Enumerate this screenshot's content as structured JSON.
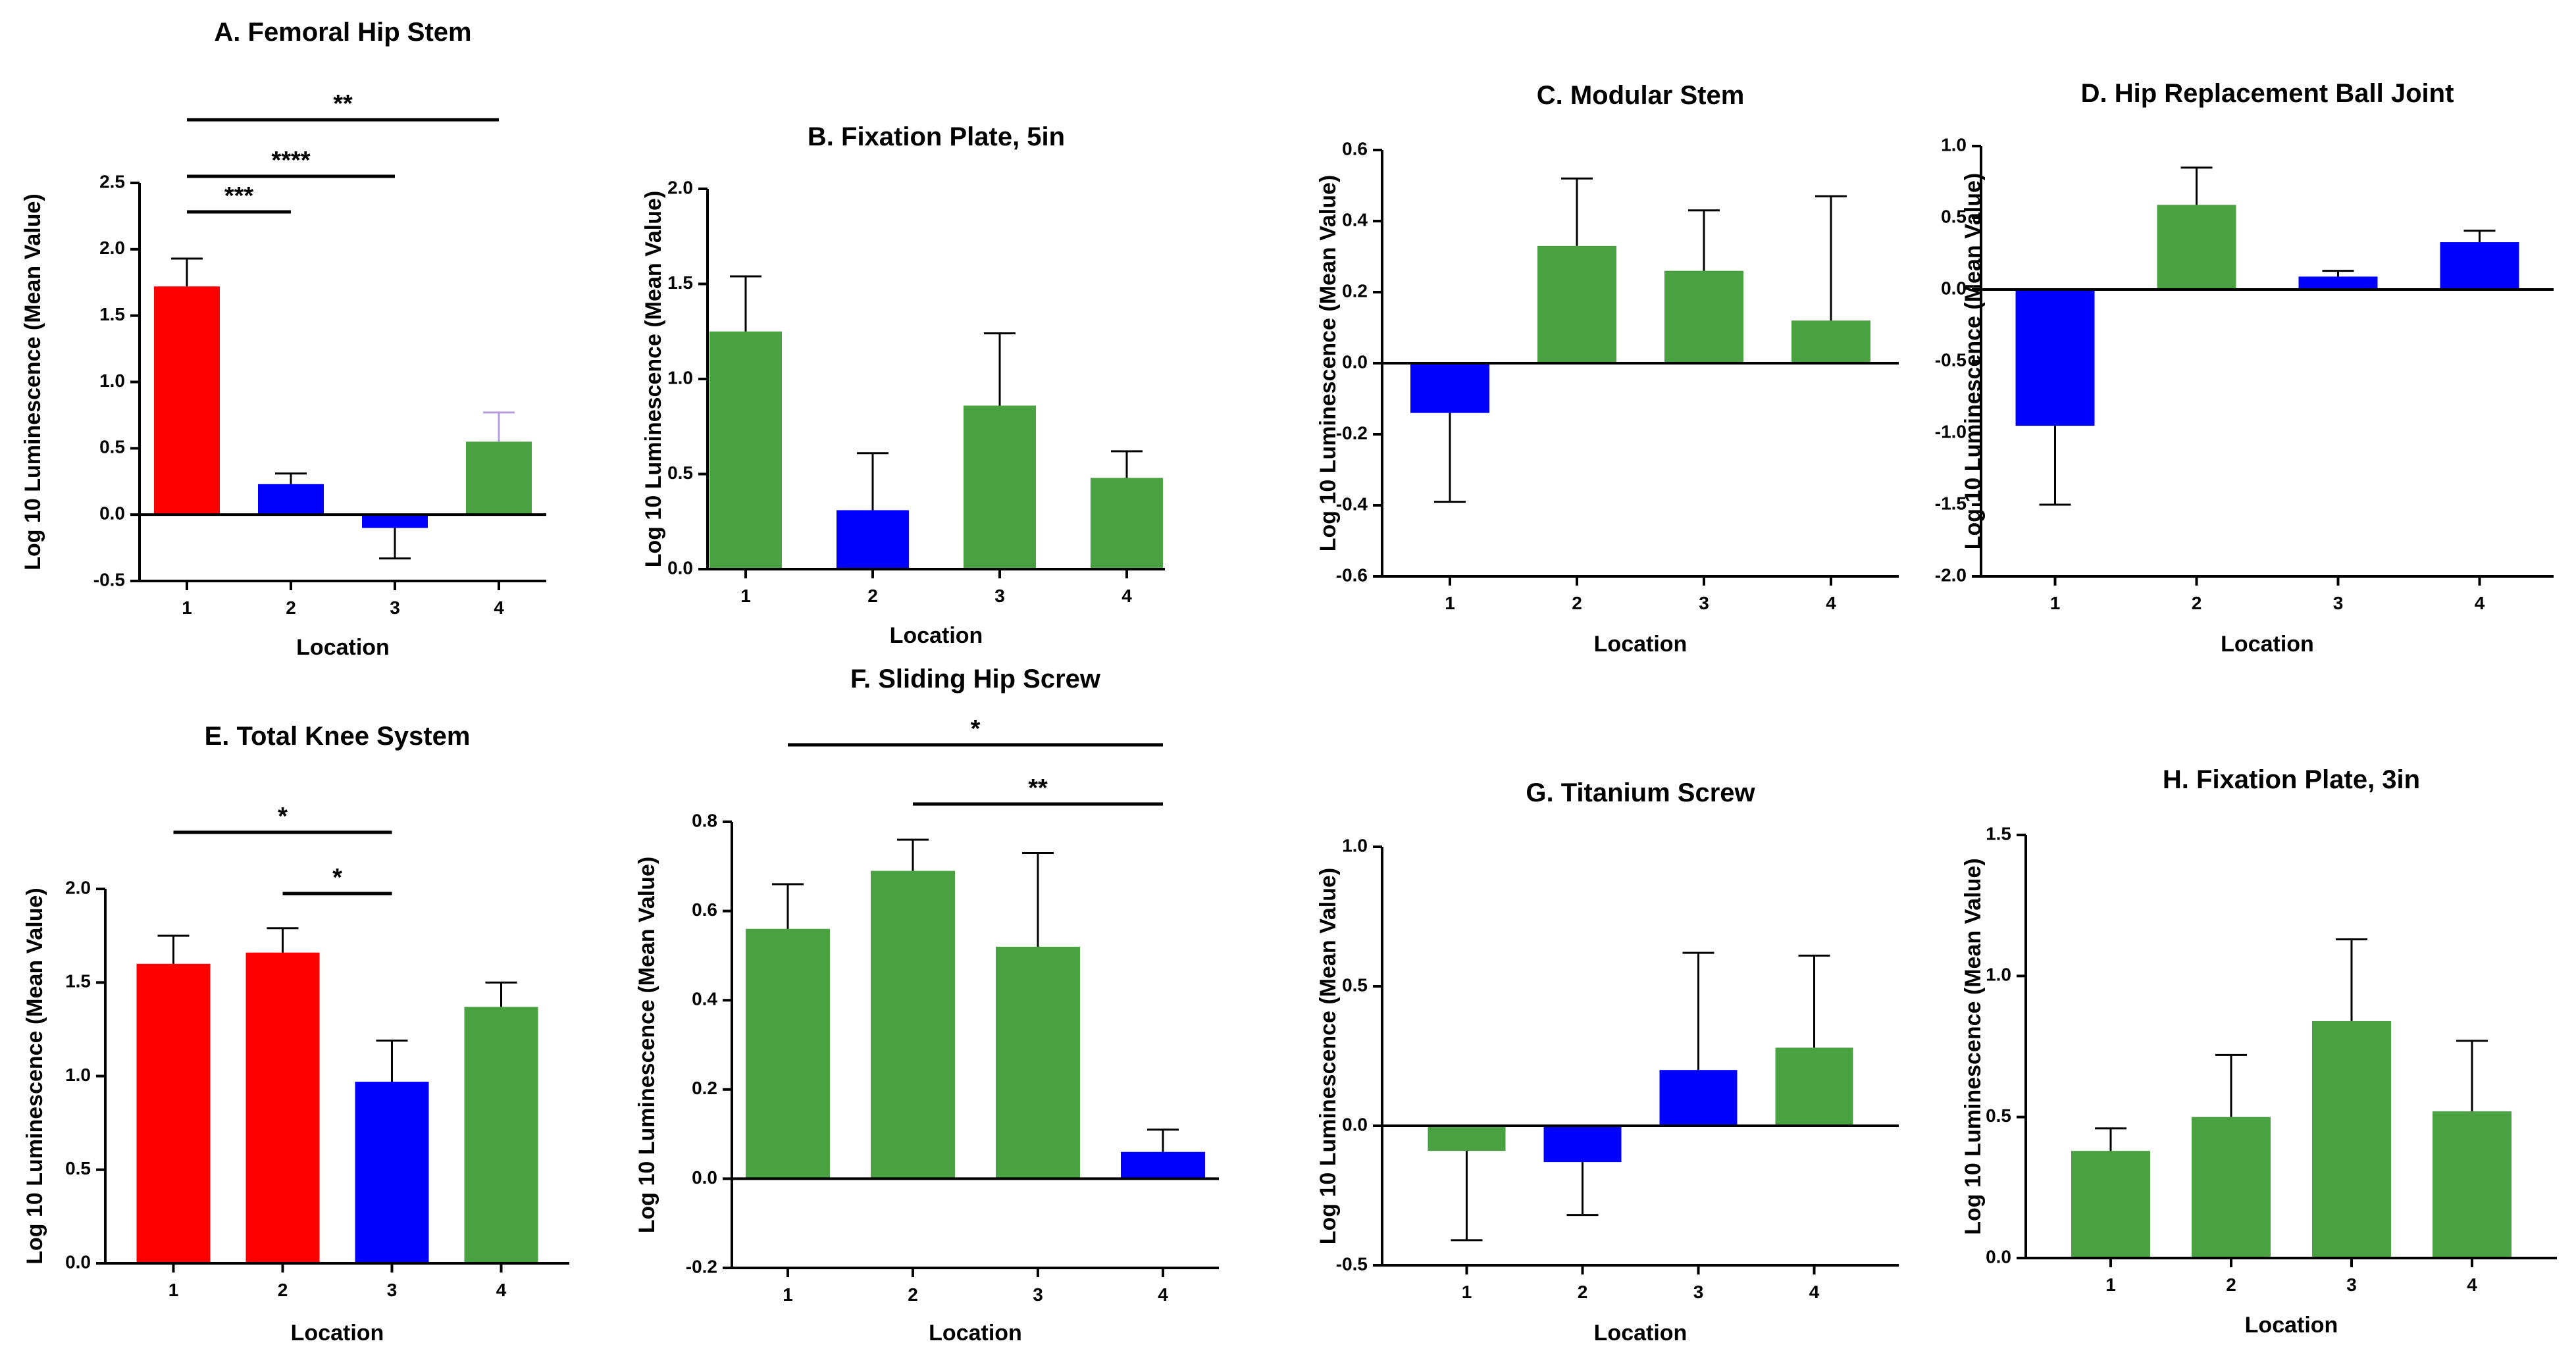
{
  "colors": {
    "red": "#ff0000",
    "blue": "#0000ff",
    "green": "#4aa142"
  },
  "chart_data": [
    {
      "type": "bar",
      "title": "A. Femoral Hip Stem",
      "xlabel": "Location",
      "ylabel": "Log 10 Luminescence (Mean Value)",
      "ylim": [
        -0.5,
        2.5
      ],
      "yticks": [
        -0.5,
        0.0,
        0.5,
        1.0,
        1.5,
        2.0,
        2.5
      ],
      "ytick_labels": [
        "-0.5",
        "0.0",
        "0.5",
        "1.0",
        "1.5",
        "2.0",
        "2.5"
      ],
      "categories": [
        "1",
        "2",
        "3",
        "4"
      ],
      "values": [
        1.72,
        0.23,
        -0.1,
        0.55
      ],
      "errors": [
        0.21,
        0.08,
        0.23,
        0.22
      ],
      "bar_colors": [
        "red",
        "blue",
        "blue",
        "green"
      ],
      "significance": [
        {
          "from": 1,
          "to": 4,
          "label": "**"
        },
        {
          "from": 1,
          "to": 3,
          "label": "****"
        },
        {
          "from": 1,
          "to": 2,
          "label": "***"
        }
      ]
    },
    {
      "type": "bar",
      "title": "B. Fixation Plate, 5in",
      "xlabel": "Location",
      "ylabel": "Log 10 Luminescence (Mean Value)",
      "ylim": [
        0.0,
        2.0
      ],
      "yticks": [
        0.0,
        0.5,
        1.0,
        1.5,
        2.0
      ],
      "ytick_labels": [
        "0.0",
        "0.5",
        "1.0",
        "1.5",
        "2.0"
      ],
      "categories": [
        "1",
        "2",
        "3",
        "4"
      ],
      "values": [
        1.25,
        0.31,
        0.86,
        0.48
      ],
      "errors": [
        0.29,
        0.3,
        0.38,
        0.14
      ],
      "bar_colors": [
        "green",
        "blue",
        "green",
        "green"
      ],
      "significance": []
    },
    {
      "type": "bar",
      "title": "C. Modular Stem",
      "xlabel": "Location",
      "ylabel": "Log 10 Luminescence (Mean Value)",
      "ylim": [
        -0.6,
        0.6
      ],
      "yticks": [
        -0.6,
        -0.4,
        -0.2,
        0.0,
        0.2,
        0.4,
        0.6
      ],
      "ytick_labels": [
        "-0.6",
        "-0.4",
        "-0.2",
        "0.0",
        "0.2",
        "0.4",
        "0.6"
      ],
      "categories": [
        "1",
        "2",
        "3",
        "4"
      ],
      "values": [
        -0.14,
        0.33,
        0.26,
        0.12
      ],
      "errors": [
        0.25,
        0.19,
        0.17,
        0.35
      ],
      "bar_colors": [
        "blue",
        "green",
        "green",
        "green"
      ],
      "significance": []
    },
    {
      "type": "bar",
      "title": "D. Hip Replacement Ball Joint",
      "xlabel": "Location",
      "ylabel": "Log 10 Luminescence (Mean Value)",
      "ylim": [
        -2.0,
        1.0
      ],
      "yticks": [
        -2.0,
        -1.5,
        -1.0,
        -0.5,
        0.0,
        0.5,
        1.0
      ],
      "ytick_labels": [
        "-2.0",
        "-1.5",
        "-1.0",
        "-0.5",
        "0.0",
        "0.5",
        "1.0"
      ],
      "categories": [
        "1",
        "2",
        "3",
        "4"
      ],
      "values": [
        -0.95,
        0.59,
        0.09,
        0.33
      ],
      "errors": [
        0.55,
        0.26,
        0.04,
        0.08
      ],
      "bar_colors": [
        "blue",
        "green",
        "blue",
        "blue"
      ],
      "significance": []
    },
    {
      "type": "bar",
      "title": "E. Total Knee System",
      "xlabel": "Location",
      "ylabel": "Log 10 Luminescence (Mean Value)",
      "ylim": [
        0.0,
        2.0
      ],
      "yticks": [
        0.0,
        0.5,
        1.0,
        1.5,
        2.0
      ],
      "ytick_labels": [
        "0.0",
        "0.5",
        "1.0",
        "1.5",
        "2.0"
      ],
      "categories": [
        "1",
        "2",
        "3",
        "4"
      ],
      "values": [
        1.6,
        1.66,
        0.97,
        1.37
      ],
      "errors": [
        0.15,
        0.13,
        0.22,
        0.13
      ],
      "bar_colors": [
        "red",
        "red",
        "blue",
        "green"
      ],
      "significance": [
        {
          "from": 1,
          "to": 3,
          "label": "*"
        },
        {
          "from": 2,
          "to": 3,
          "label": "*"
        }
      ]
    },
    {
      "type": "bar",
      "title": "F. Sliding Hip Screw",
      "xlabel": "Location",
      "ylabel": "Log 10 Luminescence (Mean Value)",
      "ylim": [
        -0.2,
        0.8
      ],
      "yticks": [
        -0.2,
        0.0,
        0.2,
        0.4,
        0.6,
        0.8
      ],
      "ytick_labels": [
        "-0.2",
        "0.0",
        "0.2",
        "0.4",
        "0.6",
        "0.8"
      ],
      "categories": [
        "1",
        "2",
        "3",
        "4"
      ],
      "values": [
        0.56,
        0.69,
        0.52,
        0.06
      ],
      "errors": [
        0.1,
        0.07,
        0.21,
        0.05
      ],
      "bar_colors": [
        "green",
        "green",
        "green",
        "blue"
      ],
      "significance": [
        {
          "from": 1,
          "to": 4,
          "label": "*"
        },
        {
          "from": 2,
          "to": 4,
          "label": "**"
        }
      ]
    },
    {
      "type": "bar",
      "title": "G. Titanium Screw",
      "xlabel": "Location",
      "ylabel": "Log 10 Luminescence (Mean Value)",
      "ylim": [
        -0.5,
        1.0
      ],
      "yticks": [
        -0.5,
        0.0,
        0.5,
        1.0
      ],
      "ytick_labels": [
        "-0.5",
        "0.0",
        "0.5",
        "1.0"
      ],
      "categories": [
        "1",
        "2",
        "3",
        "4"
      ],
      "values": [
        -0.09,
        -0.13,
        0.2,
        0.28
      ],
      "errors": [
        0.32,
        0.19,
        0.42,
        0.33
      ],
      "bar_colors": [
        "green",
        "blue",
        "blue",
        "green"
      ],
      "significance": []
    },
    {
      "type": "bar",
      "title": "H. Fixation Plate, 3in",
      "xlabel": "Location",
      "ylabel": "Log 10 Luminescence (Mean Value)",
      "ylim": [
        0.0,
        1.5
      ],
      "yticks": [
        0.0,
        0.5,
        1.0,
        1.5
      ],
      "ytick_labels": [
        "0.0",
        "0.5",
        "1.0",
        "1.5"
      ],
      "categories": [
        "1",
        "2",
        "3",
        "4"
      ],
      "values": [
        0.38,
        0.5,
        0.84,
        0.52
      ],
      "errors": [
        0.08,
        0.22,
        0.29,
        0.25
      ],
      "bar_colors": [
        "green",
        "green",
        "green",
        "green"
      ],
      "significance": []
    }
  ]
}
